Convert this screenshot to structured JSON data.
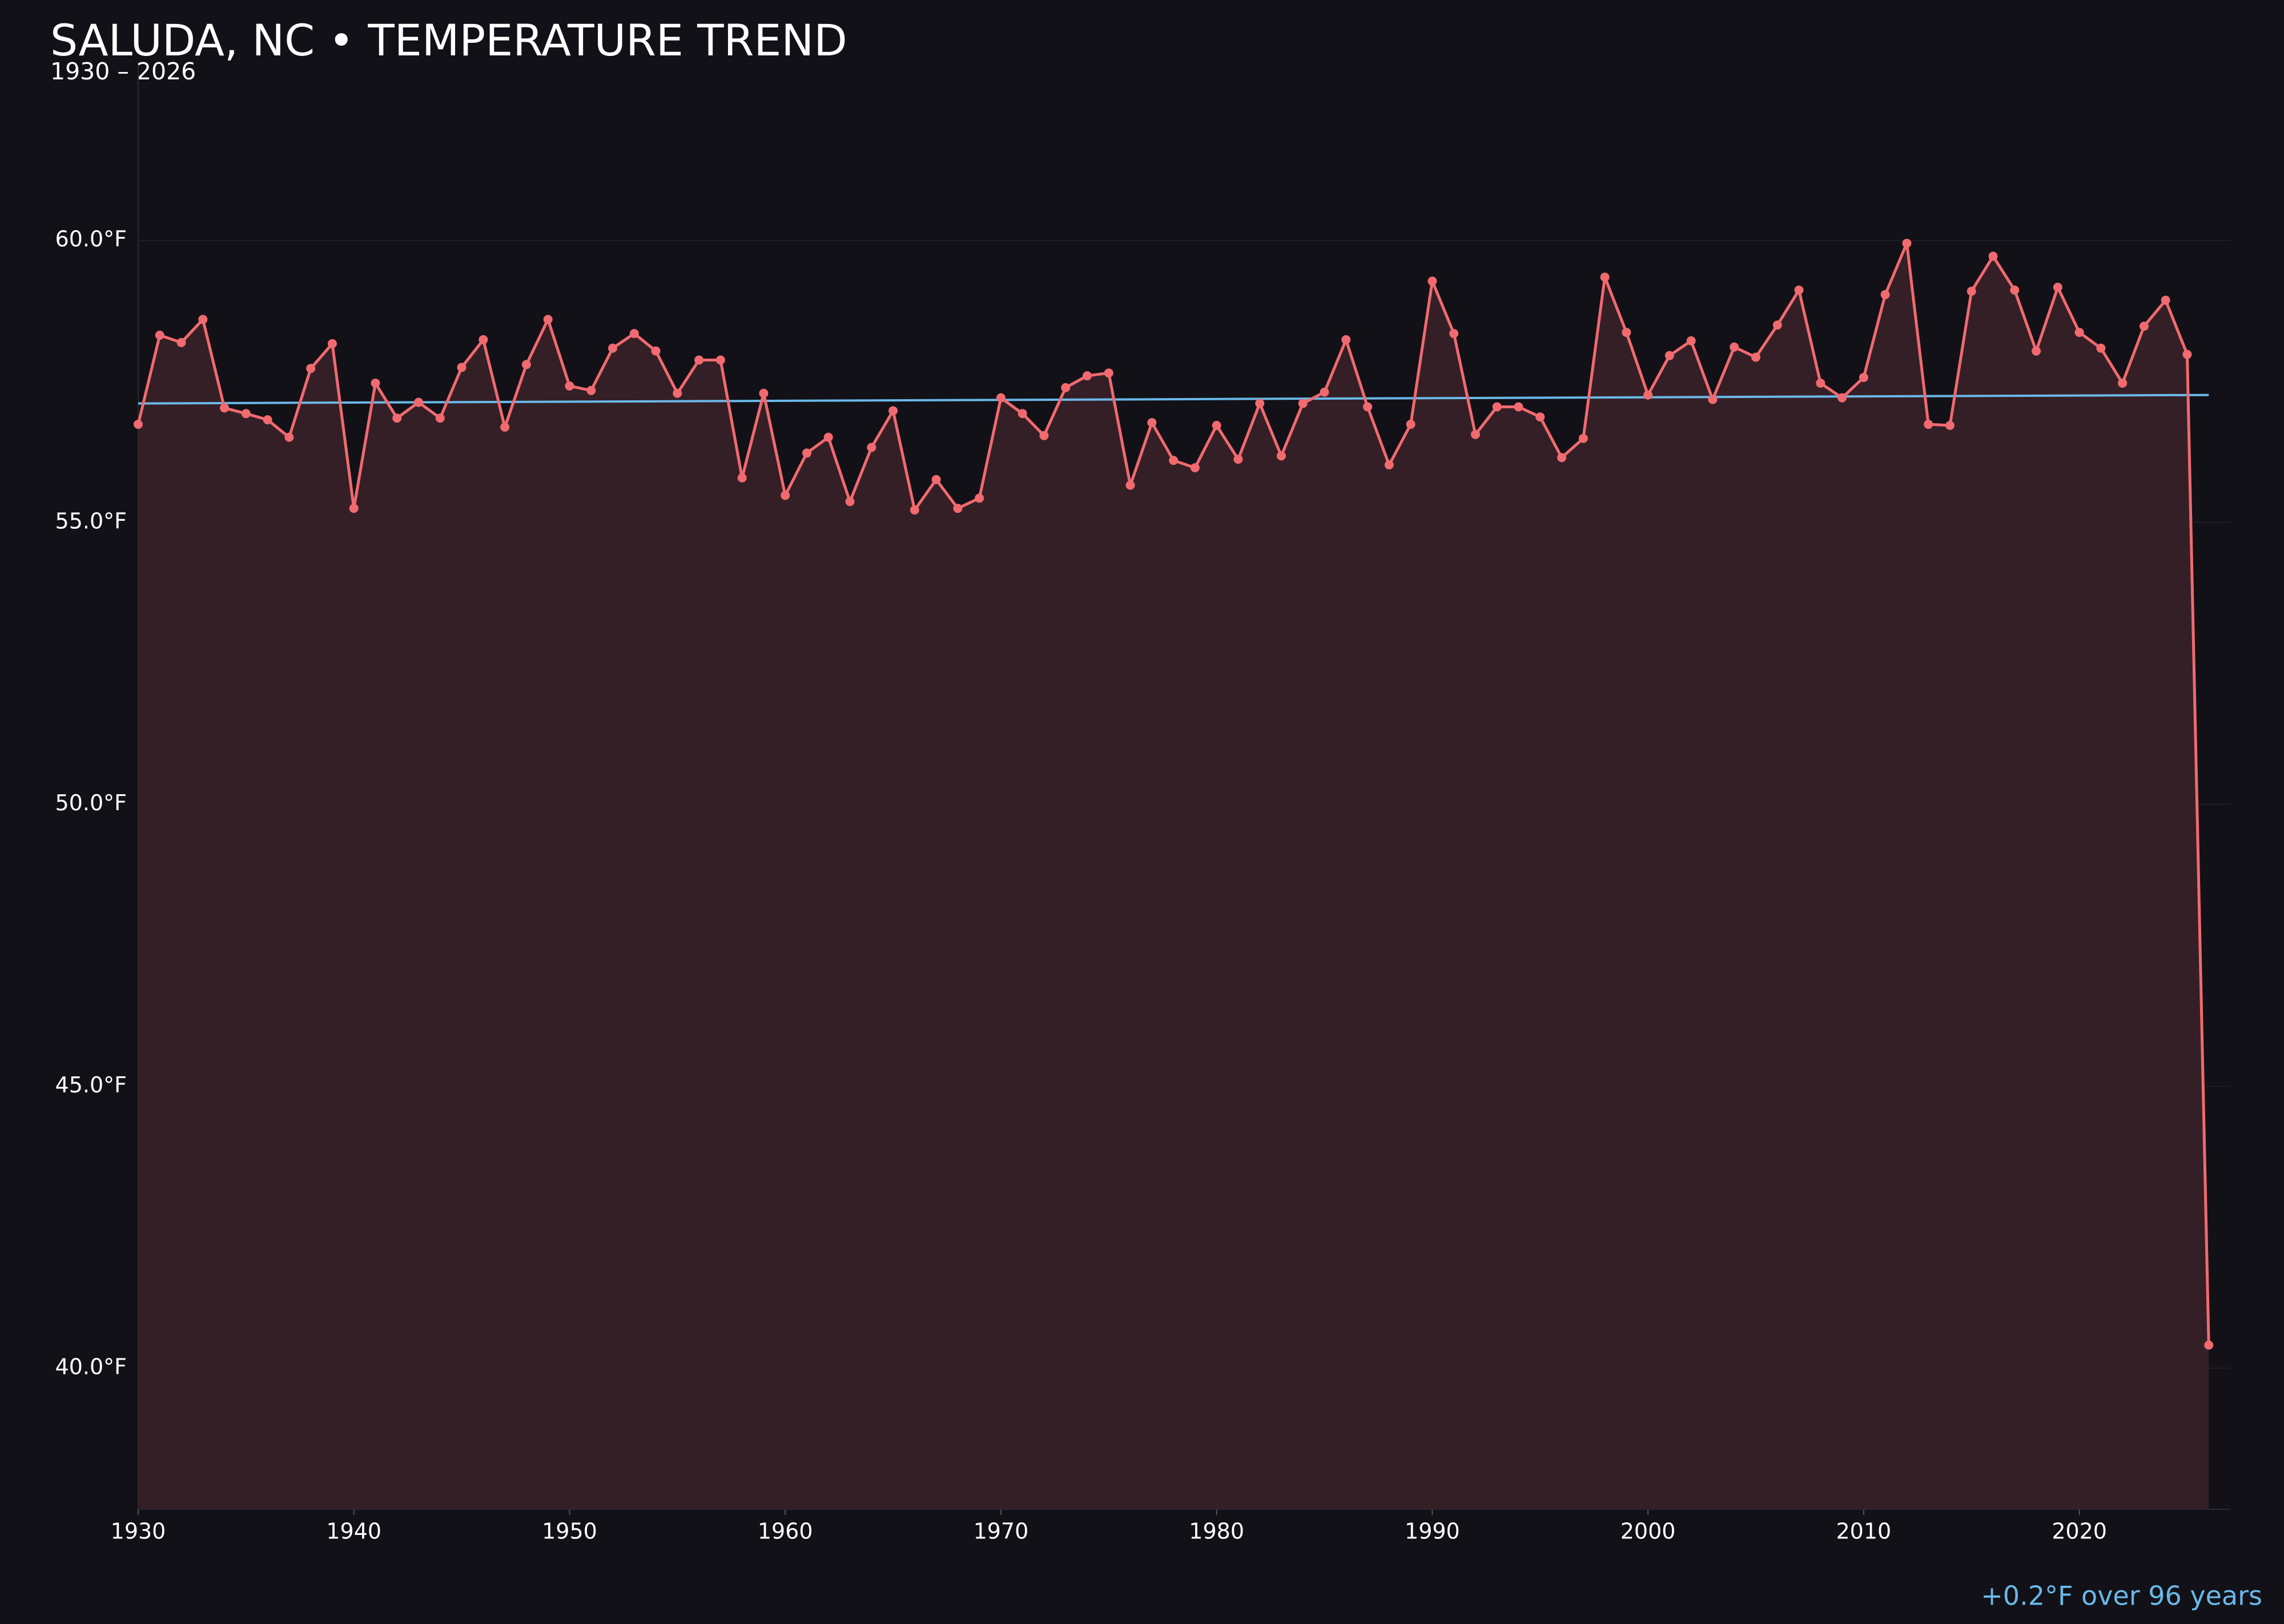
{
  "chart_data": {
    "type": "line",
    "title": "SALUDA, NC • TEMPERATURE TREND",
    "subtitle": "1930 – 2026",
    "annotation": "+0.2°F over 96 years",
    "x": [
      1930,
      1931,
      1932,
      1933,
      1934,
      1935,
      1936,
      1937,
      1938,
      1939,
      1940,
      1941,
      1942,
      1943,
      1944,
      1945,
      1946,
      1947,
      1948,
      1949,
      1950,
      1951,
      1952,
      1953,
      1954,
      1955,
      1956,
      1957,
      1958,
      1959,
      1960,
      1961,
      1962,
      1963,
      1964,
      1965,
      1966,
      1967,
      1968,
      1969,
      1970,
      1971,
      1972,
      1973,
      1974,
      1975,
      1976,
      1977,
      1978,
      1979,
      1980,
      1981,
      1982,
      1983,
      1984,
      1985,
      1986,
      1987,
      1988,
      1989,
      1990,
      1991,
      1992,
      1993,
      1994,
      1995,
      1996,
      1997,
      1998,
      1999,
      2000,
      2001,
      2002,
      2003,
      2004,
      2005,
      2006,
      2007,
      2008,
      2009,
      2010,
      2011,
      2012,
      2013,
      2014,
      2015,
      2016,
      2017,
      2018,
      2019,
      2020,
      2021,
      2022,
      2023,
      2024,
      2025,
      2026
    ],
    "values": [
      56.74,
      58.32,
      58.19,
      58.6,
      57.03,
      56.93,
      56.82,
      56.51,
      57.73,
      58.17,
      55.25,
      57.47,
      56.85,
      57.13,
      56.85,
      57.75,
      58.24,
      56.69,
      57.8,
      58.6,
      57.42,
      57.34,
      58.09,
      58.35,
      58.04,
      57.29,
      57.88,
      57.88,
      55.79,
      57.29,
      55.48,
      56.23,
      56.51,
      55.37,
      56.33,
      56.98,
      55.22,
      55.76,
      55.25,
      55.43,
      57.21,
      56.93,
      56.54,
      57.39,
      57.6,
      57.65,
      55.66,
      56.77,
      56.1,
      55.97,
      56.72,
      56.12,
      57.11,
      56.18,
      57.11,
      57.31,
      58.24,
      57.05,
      56.02,
      56.74,
      59.28,
      58.35,
      56.56,
      57.05,
      57.05,
      56.87,
      56.15,
      56.49,
      59.35,
      58.37,
      57.26,
      57.96,
      58.22,
      57.18,
      58.11,
      57.93,
      58.5,
      59.12,
      57.47,
      57.21,
      57.57,
      59.04,
      59.95,
      56.74,
      56.72,
      59.1,
      59.72,
      59.12,
      58.04,
      59.17,
      58.37,
      58.09,
      57.47,
      58.48,
      58.94,
      57.98,
      40.41
    ],
    "color": "#f06a6f",
    "area_color": "#351f26",
    "trend": {
      "x": [
        1930,
        2026
      ],
      "values": [
        57.11,
        57.26
      ],
      "color": "#6ab8e8"
    },
    "xlim": [
      1930,
      2027
    ],
    "ylim": [
      37.5,
      63.1
    ],
    "xticks": [
      1930,
      1940,
      1950,
      1960,
      1970,
      1980,
      1990,
      2000,
      2010,
      2020
    ],
    "yticks": [
      {
        "value": 40,
        "label": "40.0°F"
      },
      {
        "value": 45,
        "label": "45.0°F"
      },
      {
        "value": 50,
        "label": "50.0°F"
      },
      {
        "value": 55,
        "label": "55.0°F"
      },
      {
        "value": 60,
        "label": "60.0°F"
      }
    ],
    "grid": true
  }
}
